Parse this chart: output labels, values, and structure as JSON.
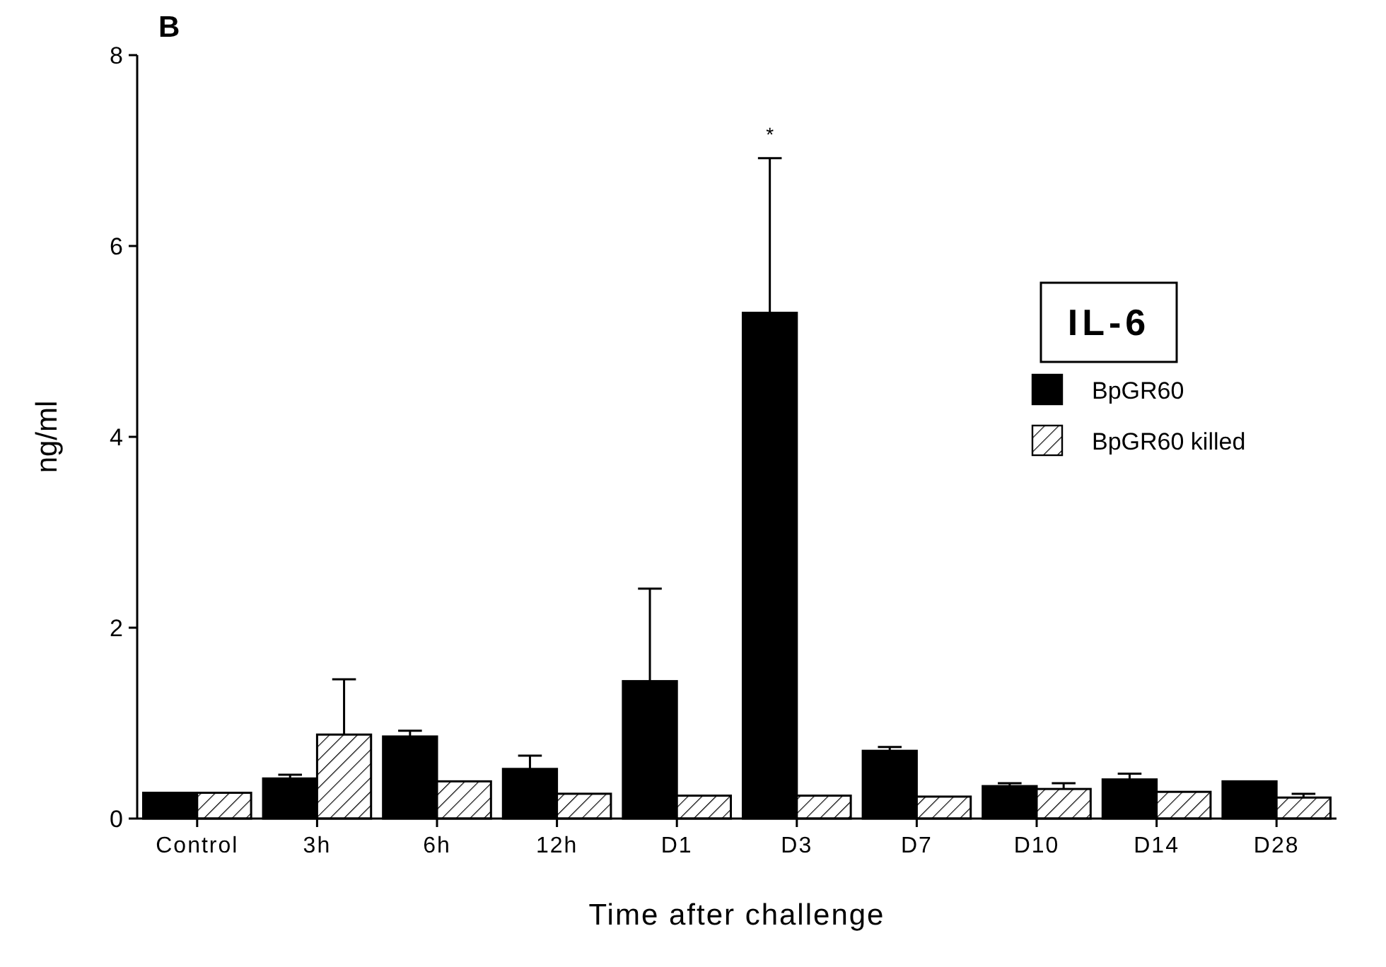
{
  "chart_data": {
    "type": "bar",
    "title": "IL-6",
    "xlabel": "Time after challenge",
    "ylabel": "ng/ml",
    "categories": [
      "Control",
      "3h",
      "6h",
      "12h",
      "D1",
      "D3",
      "D7",
      "D10",
      "D14",
      "D28"
    ],
    "series": [
      {
        "name": "BpGR60",
        "color": "#000000",
        "values": [
          0.27,
          0.42,
          0.86,
          0.52,
          1.44,
          5.3,
          0.71,
          0.34,
          0.41,
          0.39
        ],
        "errors": [
          null,
          [
            0.42,
            0.46
          ],
          [
            0.86,
            0.92
          ],
          [
            0.52,
            0.66
          ],
          [
            1.44,
            2.41
          ],
          [
            5.3,
            6.92
          ],
          [
            0.71,
            0.75
          ],
          [
            0.34,
            0.37
          ],
          [
            0.41,
            0.47
          ],
          null
        ]
      },
      {
        "name": "BpGR60 killed",
        "color": "#000000",
        "values": [
          0.27,
          0.88,
          0.39,
          0.26,
          0.24,
          0.24,
          0.23,
          0.31,
          0.28,
          0.22
        ],
        "errors": [
          null,
          [
            0.88,
            1.46
          ],
          null,
          null,
          null,
          null,
          null,
          [
            0.31,
            0.37
          ],
          null,
          [
            0.22,
            0.26
          ]
        ]
      }
    ],
    "ylim": [
      0,
      8
    ],
    "yticks": [
      0,
      2,
      4,
      6,
      8
    ],
    "grid": false,
    "legend": "right",
    "annotations": [
      "B",
      "*"
    ]
  }
}
